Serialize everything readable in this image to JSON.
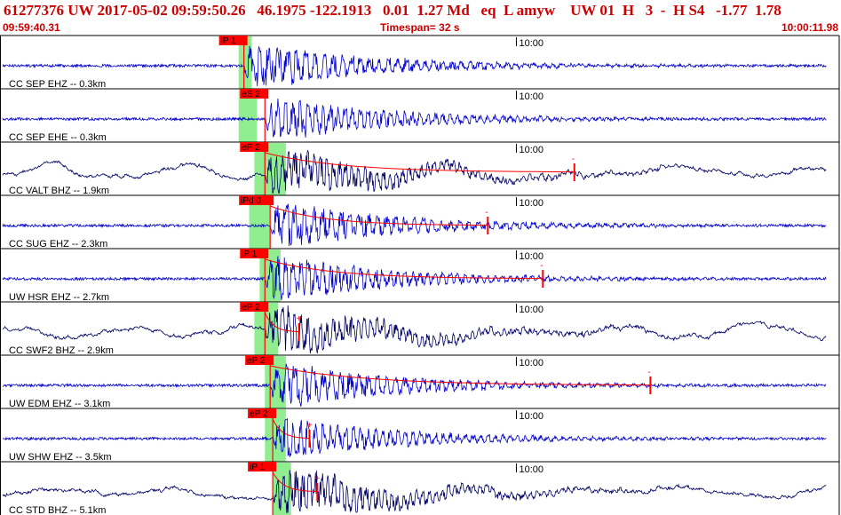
{
  "header": {
    "title": "61277376 UW 2017-05-02 09:59:50.26   46.1975 -122.1913   0.01  1.27 Md   eq  L amyw    UW 01  H   3  -  H S4   -1.77  1.78",
    "start_time": "09:59:40.31",
    "timespan_label": "Timespan=  32 s",
    "end_time": "10:00:11.98"
  },
  "chart_data": {
    "type": "seismogram",
    "time_start": "09:59:40.31",
    "time_end": "10:00:11.98",
    "timespan_s": 32,
    "minute_tick_label": "10:00",
    "minute_tick_offset_s": 19.69,
    "colors": {
      "trace_blue": "#0000cc",
      "trace_black": "#000066",
      "pick": "#ff0000",
      "window": "#90ee90",
      "label": "#000000"
    },
    "channels": [
      {
        "label": "CC SEP EHZ -- 0.3km",
        "pick": "iP 1",
        "pick_s": 9.3,
        "window_s": [
          9.1,
          9.6
        ],
        "color": "#0000cc",
        "amp": 1.0,
        "coda": null
      },
      {
        "label": "CC SEP EHE -- 0.3km",
        "pick": "eS 2",
        "pick_s": 10.1,
        "window_s": [
          9.1,
          9.8
        ],
        "color": "#0000cc",
        "amp": 0.9,
        "coda": null
      },
      {
        "label": "CC VALT BHZ -- 1.9km",
        "pick": "eP 2",
        "pick_s": 10.1,
        "window_s": [
          9.7,
          10.9
        ],
        "color": "#000066",
        "amp": 1.0,
        "coda": {
          "end_s": 21.9,
          "mark": "-"
        }
      },
      {
        "label": "CC SUG EHZ -- 2.3km",
        "pick": "iPd 0",
        "pick_s": 10.3,
        "window_s": [
          9.5,
          10.3
        ],
        "color": "#0000cc",
        "amp": 1.0,
        "coda": {
          "end_s": 18.6,
          "mark": "-"
        }
      },
      {
        "label": "UW HSR EHZ -- 2.7km",
        "pick": "iP 1",
        "pick_s": 10.1,
        "window_s": [
          9.9,
          10.7
        ],
        "color": "#0000cc",
        "amp": 1.0,
        "coda": {
          "end_s": 20.7,
          "mark": "-"
        }
      },
      {
        "label": "CC SWF2 BHZ -- 2.9km",
        "pick": "eP 2",
        "pick_s": 10.1,
        "window_s": [
          9.7,
          10.6
        ],
        "color": "#000066",
        "amp": 1.0,
        "coda": {
          "end_s": 11.4,
          "mark": "+"
        }
      },
      {
        "label": "UW EDM EHZ -- 3.1km",
        "pick": "eP 2",
        "pick_s": 10.3,
        "window_s": [
          10.1,
          10.9
        ],
        "color": "#0000cc",
        "amp": 1.0,
        "coda": {
          "end_s": 24.8,
          "mark": "-"
        }
      },
      {
        "label": "UW SHW EHZ -- 3.5km",
        "pick": "eP 2",
        "pick_s": 10.4,
        "window_s": [
          10.1,
          10.9
        ],
        "color": "#0000cc",
        "amp": 0.9,
        "coda": {
          "end_s": 11.8,
          "mark": "+"
        }
      },
      {
        "label": "CC STD BHZ -- 5.1km",
        "pick": "iP 1",
        "pick_s": 10.4,
        "window_s": [
          10.4,
          11.1
        ],
        "color": "#000066",
        "amp": 1.0,
        "coda": {
          "end_s": 12.1,
          "mark": "+"
        }
      }
    ]
  }
}
